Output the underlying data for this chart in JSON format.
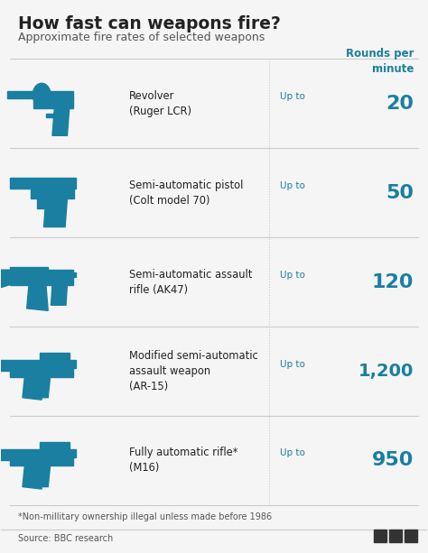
{
  "title": "How fast can weapons fire?",
  "subtitle": "Approximate fire rates of selected weapons",
  "col_header": "Rounds per\nminute",
  "bg_color": "#f5f5f5",
  "teal": "#1a7fa0",
  "dark_text": "#222222",
  "gray_line": "#cccccc",
  "footnote": "*Non-millitary ownership illegal unless made before 1986",
  "source": "Source: BBC research",
  "rows": [
    {
      "name": "Revolver\n(Ruger LCR)",
      "rate": "20",
      "prefix": "Up to"
    },
    {
      "name": "Semi-automatic pistol\n(Colt model 70)",
      "rate": "50",
      "prefix": "Up to"
    },
    {
      "name": "Semi-automatic assault\nrifle (AK47)",
      "rate": "120",
      "prefix": "Up to"
    },
    {
      "name": "Modified semi-automatic\nassault weapon\n(AR-15)",
      "rate": "1,200",
      "prefix": "Up to"
    },
    {
      "name": "Fully automatic rifle*\n(M16)",
      "rate": "950",
      "prefix": "Up to"
    }
  ]
}
